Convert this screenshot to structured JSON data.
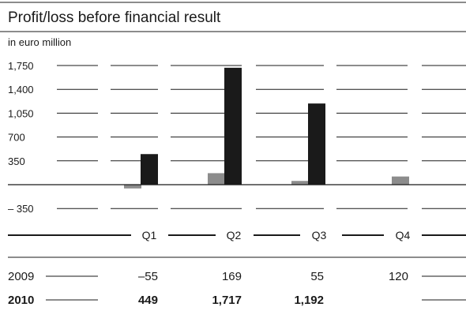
{
  "chart_data": {
    "type": "bar",
    "title": "Profit/loss before financial result",
    "unit_label": "in euro million",
    "categories": [
      "Q1",
      "Q2",
      "Q3",
      "Q4"
    ],
    "y_ticks": [
      {
        "value": 1750,
        "label": "1,750"
      },
      {
        "value": 1400,
        "label": "1,400"
      },
      {
        "value": 1050,
        "label": "1,050"
      },
      {
        "value": 700,
        "label": "700"
      },
      {
        "value": 350,
        "label": "350"
      },
      {
        "value": -350,
        "label": "– 350"
      }
    ],
    "ylim": [
      -350,
      1750
    ],
    "grid": true,
    "series": [
      {
        "name": "2009",
        "color": "#8c8c8c",
        "values": [
          -55,
          169,
          55,
          120
        ],
        "labels": [
          "–55",
          "169",
          "55",
          "120"
        ],
        "bold": false
      },
      {
        "name": "2010",
        "color": "#1a1a1a",
        "values": [
          449,
          1717,
          1192,
          null
        ],
        "labels": [
          "449",
          "1,717",
          "1,192",
          ""
        ],
        "bold": true
      }
    ]
  }
}
